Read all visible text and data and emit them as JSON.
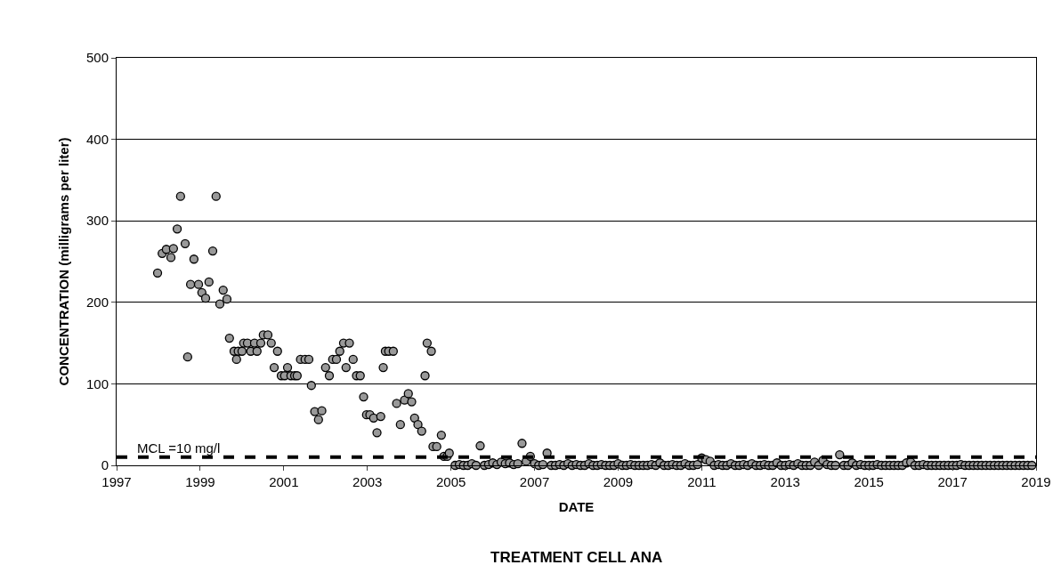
{
  "chart_data": {
    "type": "scatter",
    "title": "TREATMENT CELL ANA",
    "xlabel": "DATE",
    "ylabel": "CONCENTRATION (milligrams per liter)",
    "xlim": [
      1997,
      2019
    ],
    "xticks": [
      1997,
      1999,
      2001,
      2003,
      2005,
      2007,
      2009,
      2011,
      2013,
      2015,
      2017,
      2019
    ],
    "ylim": [
      0,
      500
    ],
    "yticks": [
      0,
      100,
      200,
      300,
      400,
      500
    ],
    "grid": "y",
    "marker": "circle",
    "ref_lines": [
      {
        "axis": "y",
        "value": 10,
        "label": "MCL =10 mg/l",
        "color": "#000000",
        "line_style": "dashed"
      }
    ],
    "series": [
      {
        "color": "#999999",
        "x": [
          1997.98,
          1998.09,
          1998.19,
          1998.3,
          1998.36,
          1998.45,
          1998.53,
          1998.64,
          1998.7,
          1998.77,
          1998.85,
          1998.96,
          1999.04,
          1999.13,
          1999.21,
          1999.3,
          1999.38,
          1999.47,
          1999.55,
          1999.64,
          1999.7,
          1999.81,
          1999.87,
          1999.91,
          2000.0,
          2000.04,
          2000.13,
          2000.21,
          2000.3,
          2000.36,
          2000.45,
          2000.51,
          2000.62,
          2000.7,
          2000.77,
          2000.85,
          2000.94,
          2001.02,
          2001.09,
          2001.17,
          2001.26,
          2001.32,
          2001.4,
          2001.51,
          2001.6,
          2001.66,
          2001.74,
          2001.83,
          2001.91,
          2002.0,
          2002.09,
          2002.17,
          2002.26,
          2002.34,
          2002.43,
          2002.49,
          2002.57,
          2002.66,
          2002.74,
          2002.83,
          2002.91,
          2002.98,
          2003.06,
          2003.15,
          2003.23,
          2003.32,
          2003.38,
          2003.43,
          2003.51,
          2003.62,
          2003.7,
          2003.79,
          2003.89,
          2003.98,
          2004.06,
          2004.13,
          2004.21,
          2004.3,
          2004.38,
          2004.43,
          2004.53,
          2004.57,
          2004.66,
          2004.77,
          2004.83,
          2004.91,
          2004.96,
          2005.1,
          2005.2,
          2005.3,
          2005.4,
          2005.5,
          2005.6,
          2005.7,
          2005.8,
          2005.9,
          2006.0,
          2006.1,
          2006.2,
          2006.3,
          2006.4,
          2006.5,
          2006.6,
          2006.7,
          2006.8,
          2006.9,
          2007.0,
          2007.1,
          2007.2,
          2007.3,
          2007.4,
          2007.5,
          2007.6,
          2007.7,
          2007.8,
          2007.9,
          2008.0,
          2008.1,
          2008.2,
          2008.3,
          2008.4,
          2008.5,
          2008.6,
          2008.7,
          2008.8,
          2008.9,
          2009.0,
          2009.1,
          2009.2,
          2009.3,
          2009.4,
          2009.5,
          2009.6,
          2009.7,
          2009.8,
          2009.9,
          2010.0,
          2010.1,
          2010.2,
          2010.3,
          2010.4,
          2010.5,
          2010.6,
          2010.7,
          2010.8,
          2010.9,
          2011.0,
          2011.1,
          2011.2,
          2011.3,
          2011.4,
          2011.5,
          2011.6,
          2011.7,
          2011.8,
          2011.9,
          2012.0,
          2012.1,
          2012.2,
          2012.3,
          2012.4,
          2012.5,
          2012.6,
          2012.7,
          2012.8,
          2012.9,
          2013.0,
          2013.1,
          2013.2,
          2013.3,
          2013.4,
          2013.5,
          2013.6,
          2013.7,
          2013.8,
          2013.9,
          2014.0,
          2014.1,
          2014.2,
          2014.3,
          2014.4,
          2014.5,
          2014.6,
          2014.7,
          2014.8,
          2014.9,
          2015.0,
          2015.1,
          2015.2,
          2015.3,
          2015.4,
          2015.5,
          2015.6,
          2015.7,
          2015.8,
          2015.9,
          2016.0,
          2016.1,
          2016.2,
          2016.3,
          2016.4,
          2016.5,
          2016.6,
          2016.7,
          2016.8,
          2016.9,
          2017.0,
          2017.1,
          2017.2,
          2017.3,
          2017.4,
          2017.5,
          2017.6,
          2017.7,
          2017.8,
          2017.9,
          2018.0,
          2018.1,
          2018.2,
          2018.3,
          2018.4,
          2018.5,
          2018.6,
          2018.7,
          2018.8,
          2018.9
        ],
        "values": [
          236,
          260,
          265,
          255,
          266,
          290,
          330,
          272,
          133,
          222,
          253,
          222,
          212,
          205,
          225,
          263,
          330,
          198,
          215,
          204,
          156,
          140,
          130,
          140,
          140,
          150,
          150,
          140,
          150,
          140,
          150,
          160,
          160,
          150,
          120,
          140,
          110,
          110,
          120,
          110,
          110,
          110,
          130,
          130,
          130,
          98,
          66,
          56,
          67,
          120,
          110,
          130,
          130,
          140,
          150,
          120,
          150,
          130,
          110,
          110,
          84,
          62,
          62,
          58,
          40,
          60,
          120,
          140,
          140,
          140,
          76,
          50,
          80,
          88,
          78,
          58,
          50,
          42,
          110,
          150,
          140,
          23,
          23,
          37,
          11,
          11,
          15,
          0,
          1,
          0,
          0,
          2,
          0,
          24,
          0,
          1,
          3,
          1,
          4,
          2,
          3,
          1,
          2,
          27,
          5,
          11,
          2,
          0,
          1,
          15,
          0,
          0,
          1,
          0,
          2,
          0,
          1,
          0,
          0,
          2,
          0,
          0,
          1,
          0,
          0,
          0,
          2,
          0,
          0,
          1,
          0,
          0,
          0,
          0,
          1,
          0,
          3,
          0,
          0,
          1,
          0,
          0,
          2,
          0,
          0,
          1,
          9,
          7,
          5,
          0,
          1,
          0,
          0,
          2,
          0,
          0,
          1,
          0,
          2,
          0,
          0,
          1,
          0,
          0,
          3,
          0,
          0,
          1,
          0,
          2,
          0,
          0,
          0,
          4,
          0,
          6,
          1,
          0,
          0,
          13,
          0,
          0,
          3,
          0,
          1,
          0,
          0,
          0,
          1,
          0,
          0,
          0,
          0,
          0,
          0,
          3,
          4,
          0,
          0,
          1,
          0,
          0,
          0,
          0,
          0,
          0,
          0,
          0,
          1,
          0,
          0,
          0,
          0,
          0,
          0,
          0,
          0,
          0,
          0,
          0,
          0,
          0,
          0,
          0,
          0,
          0
        ]
      }
    ]
  }
}
